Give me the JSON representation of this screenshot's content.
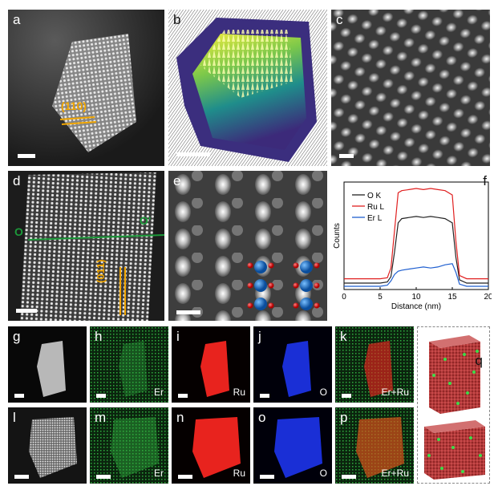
{
  "panels": {
    "a": {
      "label": "a",
      "plane_label": "(110)"
    },
    "b": {
      "label": "b"
    },
    "c": {
      "label": "c"
    },
    "d": {
      "label": "d",
      "line_start": "O",
      "line_end": "O'",
      "plane_label": "(011)"
    },
    "e": {
      "label": "e"
    },
    "f": {
      "label": "f"
    },
    "g": {
      "label": "g"
    },
    "h": {
      "label": "h",
      "element": "Er"
    },
    "i": {
      "label": "i",
      "element": "Ru"
    },
    "j": {
      "label": "j",
      "element": "O"
    },
    "k": {
      "label": "k",
      "element": "Er+Ru"
    },
    "l": {
      "label": "l"
    },
    "m": {
      "label": "m",
      "element": "Er"
    },
    "n": {
      "label": "n",
      "element": "Ru"
    },
    "o": {
      "label": "o",
      "element": "O"
    },
    "p": {
      "label": "p",
      "element": "Er+Ru"
    },
    "q": {
      "label": "q"
    }
  },
  "colors": {
    "er": "#2fae3f",
    "ru": "#e8231e",
    "o": "#1a2fd6",
    "gold": "#f0a500",
    "green_line": "#1c9a3a"
  },
  "chart_data": {
    "type": "line",
    "xlabel": "Distance (nm)",
    "ylabel": "Counts",
    "xlim": [
      0,
      20
    ],
    "xticks": [
      "0",
      "5",
      "10",
      "15",
      "20"
    ],
    "legend_position": "top-left",
    "series": [
      {
        "name": "O K",
        "color": "#222222",
        "x": [
          0,
          1,
          2,
          3,
          4,
          5,
          6,
          6.5,
          7,
          7.5,
          8,
          9,
          10,
          11,
          12,
          13,
          14,
          15,
          15.5,
          16,
          17,
          18,
          19,
          20
        ],
        "y": [
          0.06,
          0.06,
          0.06,
          0.06,
          0.06,
          0.06,
          0.07,
          0.12,
          0.35,
          0.62,
          0.66,
          0.67,
          0.68,
          0.67,
          0.68,
          0.67,
          0.66,
          0.62,
          0.3,
          0.09,
          0.06,
          0.06,
          0.06,
          0.06
        ]
      },
      {
        "name": "Ru L",
        "color": "#e02020",
        "x": [
          0,
          1,
          2,
          3,
          4,
          5,
          6,
          6.5,
          7,
          7.5,
          8,
          9,
          10,
          11,
          12,
          13,
          14,
          15,
          15.5,
          16,
          17,
          18,
          19,
          20
        ],
        "y": [
          0.1,
          0.1,
          0.1,
          0.1,
          0.1,
          0.1,
          0.11,
          0.2,
          0.55,
          0.9,
          0.92,
          0.93,
          0.94,
          0.93,
          0.94,
          0.93,
          0.92,
          0.88,
          0.45,
          0.13,
          0.1,
          0.1,
          0.1,
          0.1
        ]
      },
      {
        "name": "Er L",
        "color": "#1f5fd0",
        "x": [
          0,
          1,
          2,
          3,
          4,
          5,
          6,
          6.5,
          7,
          7.5,
          8,
          9,
          10,
          11,
          12,
          13,
          14,
          15,
          15.5,
          16,
          17,
          18,
          19,
          20
        ],
        "y": [
          0.03,
          0.03,
          0.03,
          0.03,
          0.03,
          0.03,
          0.04,
          0.08,
          0.14,
          0.17,
          0.18,
          0.19,
          0.2,
          0.21,
          0.2,
          0.21,
          0.23,
          0.24,
          0.16,
          0.05,
          0.03,
          0.03,
          0.03,
          0.03
        ]
      }
    ]
  }
}
